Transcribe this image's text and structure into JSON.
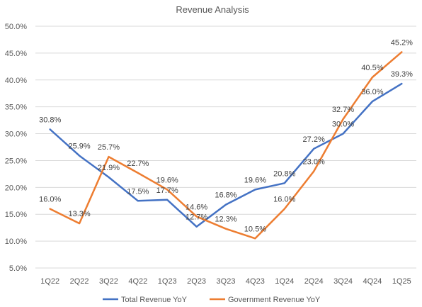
{
  "chart_data": {
    "type": "line",
    "title": "Revenue Analysis",
    "categories": [
      "1Q22",
      "2Q22",
      "3Q22",
      "4Q22",
      "1Q23",
      "2Q23",
      "3Q23",
      "4Q23",
      "1Q24",
      "2Q24",
      "3Q24",
      "4Q24",
      "1Q25"
    ],
    "series": [
      {
        "name": "Total Revenue YoY",
        "color": "#4472c4",
        "values": [
          30.8,
          25.9,
          21.9,
          17.5,
          17.7,
          12.7,
          16.8,
          19.6,
          20.8,
          27.2,
          30.0,
          36.0,
          39.3
        ],
        "labels": [
          "30.8%",
          "25.9%",
          "21.9%",
          "17.5%",
          "17.7%",
          "12.7%",
          "16.8%",
          "19.6%",
          "20.8%",
          "27.2%",
          "30.0%",
          "36.0%",
          "39.3%"
        ]
      },
      {
        "name": "Government Revenue YoY",
        "color": "#ed7d31",
        "values": [
          16.0,
          13.3,
          25.7,
          22.7,
          19.6,
          14.6,
          12.3,
          10.5,
          16.0,
          23.0,
          32.7,
          40.5,
          45.2
        ],
        "labels": [
          "16.0%",
          "13.3%",
          "25.7%",
          "22.7%",
          "19.6%",
          "14.6%",
          "12.3%",
          "10.5%",
          "16.0%",
          "23.0%",
          "32.7%",
          "40.5%",
          "45.2%"
        ]
      }
    ],
    "yticks": [
      5,
      10,
      15,
      20,
      25,
      30,
      35,
      40,
      45,
      50
    ],
    "ytick_labels": [
      "5.0%",
      "10.0%",
      "15.0%",
      "20.0%",
      "25.0%",
      "30.0%",
      "35.0%",
      "40.0%",
      "45.0%",
      "50.0%"
    ],
    "ylim": [
      5,
      50
    ],
    "grid": true,
    "legend_position": "bottom"
  }
}
